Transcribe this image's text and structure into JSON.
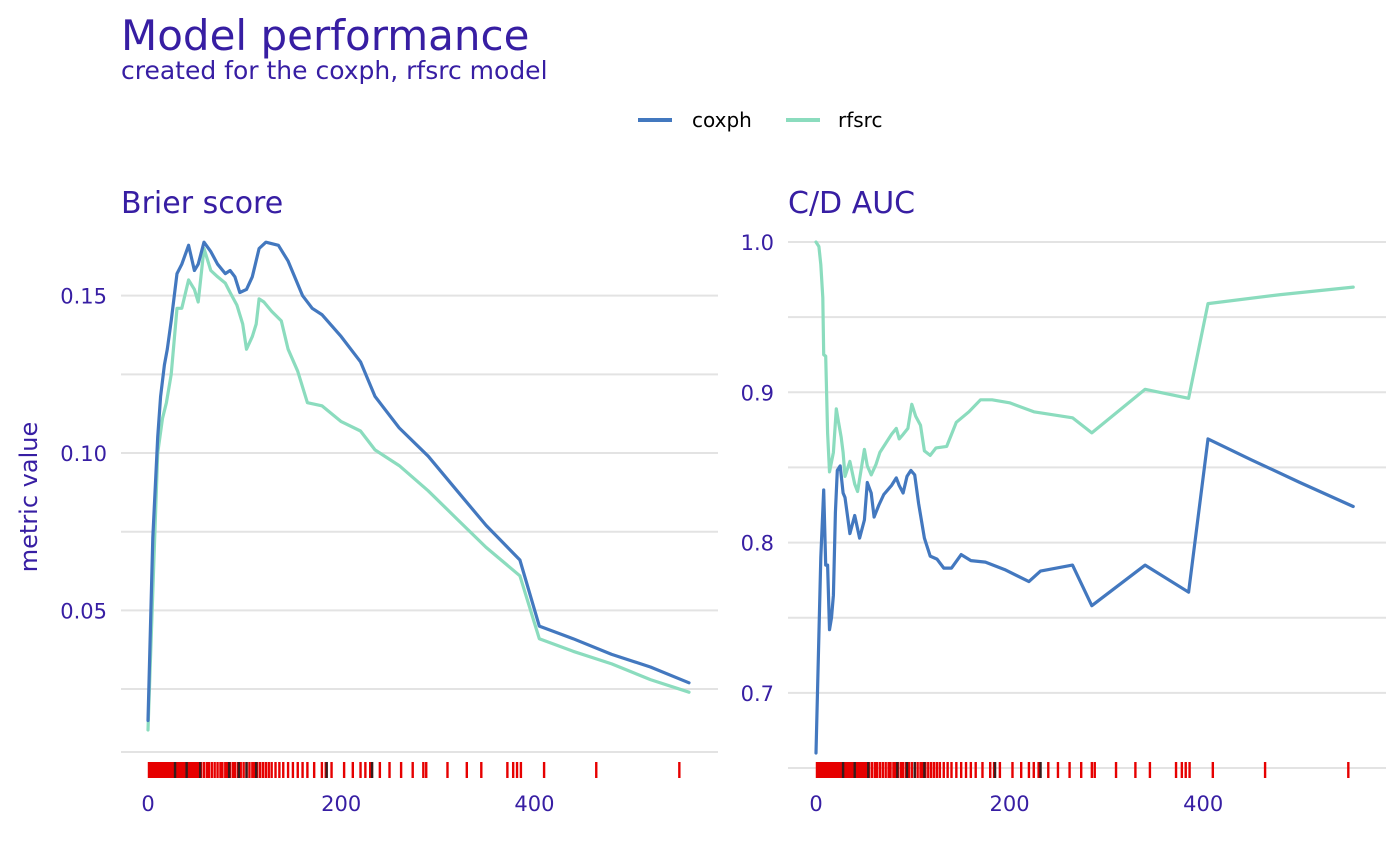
{
  "title": "Model performance",
  "subtitle": "created for the coxph, rfsrc model",
  "ylabel": "metric value",
  "colors": {
    "title": "#371ea3",
    "grid": "#e3e3e3",
    "rug": "#e60000",
    "rug_dark": "#371c1c",
    "coxph": "#4378bf",
    "rfsrc": "#8bdcbe"
  },
  "legend": {
    "position": "top",
    "items": [
      {
        "name": "coxph",
        "color": "#4378bf"
      },
      {
        "name": "rfsrc",
        "color": "#8bdcbe"
      }
    ]
  },
  "chart_data": [
    {
      "type": "line",
      "panel_title": "Brier score",
      "xlim": [
        0,
        560
      ],
      "ylim": [
        0.005,
        0.175
      ],
      "x_ticks": [
        0,
        200,
        400
      ],
      "x_tick_labels": [
        "0",
        "200",
        "400"
      ],
      "y_ticks": [
        0.05,
        0.1,
        0.15
      ],
      "y_tick_labels": [
        "0.05",
        "0.10",
        "0.15"
      ],
      "y_minor_ticks": [
        0.025,
        0.075,
        0.125
      ],
      "grid": true,
      "series": [
        {
          "name": "coxph",
          "color": "#4378bf",
          "points": [
            [
              0,
              0.015
            ],
            [
              5,
              0.073
            ],
            [
              10,
              0.105
            ],
            [
              13,
              0.118
            ],
            [
              17,
              0.128
            ],
            [
              20,
              0.133
            ],
            [
              24,
              0.142
            ],
            [
              30,
              0.157
            ],
            [
              35,
              0.16
            ],
            [
              42,
              0.166
            ],
            [
              48,
              0.158
            ],
            [
              52,
              0.16
            ],
            [
              58,
              0.167
            ],
            [
              65,
              0.164
            ],
            [
              72,
              0.16
            ],
            [
              80,
              0.157
            ],
            [
              85,
              0.158
            ],
            [
              90,
              0.156
            ],
            [
              95,
              0.151
            ],
            [
              102,
              0.152
            ],
            [
              108,
              0.156
            ],
            [
              115,
              0.165
            ],
            [
              122,
              0.167
            ],
            [
              135,
              0.166
            ],
            [
              145,
              0.161
            ],
            [
              160,
              0.15
            ],
            [
              170,
              0.146
            ],
            [
              180,
              0.144
            ],
            [
              200,
              0.137
            ],
            [
              220,
              0.129
            ],
            [
              235,
              0.118
            ],
            [
              260,
              0.108
            ],
            [
              290,
              0.099
            ],
            [
              320,
              0.088
            ],
            [
              350,
              0.077
            ],
            [
              385,
              0.066
            ],
            [
              405,
              0.045
            ],
            [
              440,
              0.041
            ],
            [
              480,
              0.036
            ],
            [
              520,
              0.032
            ],
            [
              560,
              0.027
            ]
          ]
        },
        {
          "name": "rfsrc",
          "color": "#8bdcbe",
          "points": [
            [
              0,
              0.012
            ],
            [
              6,
              0.065
            ],
            [
              10,
              0.1
            ],
            [
              15,
              0.111
            ],
            [
              19,
              0.116
            ],
            [
              24,
              0.125
            ],
            [
              30,
              0.146
            ],
            [
              35,
              0.146
            ],
            [
              42,
              0.155
            ],
            [
              48,
              0.152
            ],
            [
              52,
              0.148
            ],
            [
              58,
              0.165
            ],
            [
              65,
              0.158
            ],
            [
              72,
              0.156
            ],
            [
              80,
              0.154
            ],
            [
              85,
              0.151
            ],
            [
              92,
              0.147
            ],
            [
              98,
              0.141
            ],
            [
              102,
              0.133
            ],
            [
              108,
              0.137
            ],
            [
              112,
              0.141
            ],
            [
              115,
              0.149
            ],
            [
              120,
              0.148
            ],
            [
              128,
              0.145
            ],
            [
              138,
              0.142
            ],
            [
              145,
              0.133
            ],
            [
              155,
              0.126
            ],
            [
              165,
              0.116
            ],
            [
              180,
              0.115
            ],
            [
              200,
              0.11
            ],
            [
              220,
              0.107
            ],
            [
              235,
              0.101
            ],
            [
              260,
              0.096
            ],
            [
              290,
              0.088
            ],
            [
              320,
              0.079
            ],
            [
              350,
              0.07
            ],
            [
              385,
              0.061
            ],
            [
              405,
              0.041
            ],
            [
              440,
              0.037
            ],
            [
              480,
              0.033
            ],
            [
              520,
              0.028
            ],
            [
              560,
              0.024
            ]
          ]
        }
      ],
      "rug": [
        1,
        3,
        5,
        6,
        8,
        10,
        11,
        13,
        14,
        15,
        17,
        18,
        20,
        21,
        23,
        24,
        26,
        27,
        28,
        30,
        32,
        33,
        35,
        37,
        38,
        40,
        42,
        44,
        46,
        48,
        50,
        52,
        55,
        58,
        61,
        63,
        66,
        69,
        72,
        75,
        77,
        80,
        82,
        85,
        88,
        90,
        93,
        96,
        99,
        102,
        105,
        108,
        110,
        113,
        116,
        119,
        122,
        125,
        128,
        132,
        136,
        140,
        145,
        150,
        155,
        160,
        165,
        172,
        180,
        184,
        190,
        203,
        212,
        220,
        225,
        230,
        240,
        250,
        262,
        274,
        285,
        288,
        310,
        330,
        345,
        372,
        378,
        382,
        386,
        410,
        464,
        550
      ],
      "rug_dark": [
        28,
        40,
        54,
        84,
        94,
        102,
        112,
        185,
        232
      ]
    },
    {
      "type": "line",
      "panel_title": "C/D AUC",
      "xlim": [
        0,
        560
      ],
      "ylim": [
        0.65,
        1.0
      ],
      "x_ticks": [
        0,
        200,
        400
      ],
      "x_tick_labels": [
        "0",
        "200",
        "400"
      ],
      "y_ticks": [
        0.7,
        0.8,
        0.9,
        1.0
      ],
      "y_tick_labels": [
        "0.7",
        "0.8",
        "0.9",
        "1.0"
      ],
      "y_minor_ticks": [
        0.75,
        0.85,
        0.95
      ],
      "grid": true,
      "series": [
        {
          "name": "coxph",
          "color": "#4378bf",
          "points": [
            [
              0,
              0.66
            ],
            [
              5,
              0.79
            ],
            [
              8,
              0.835
            ],
            [
              10,
              0.785
            ],
            [
              12,
              0.785
            ],
            [
              14,
              0.742
            ],
            [
              16,
              0.75
            ],
            [
              18,
              0.765
            ],
            [
              20,
              0.82
            ],
            [
              22,
              0.848
            ],
            [
              25,
              0.851
            ],
            [
              28,
              0.833
            ],
            [
              30,
              0.83
            ],
            [
              35,
              0.806
            ],
            [
              40,
              0.818
            ],
            [
              45,
              0.803
            ],
            [
              50,
              0.815
            ],
            [
              53,
              0.84
            ],
            [
              57,
              0.833
            ],
            [
              60,
              0.817
            ],
            [
              65,
              0.825
            ],
            [
              70,
              0.832
            ],
            [
              78,
              0.838
            ],
            [
              83,
              0.843
            ],
            [
              86,
              0.838
            ],
            [
              90,
              0.833
            ],
            [
              94,
              0.844
            ],
            [
              98,
              0.848
            ],
            [
              102,
              0.845
            ],
            [
              106,
              0.826
            ],
            [
              112,
              0.803
            ],
            [
              118,
              0.791
            ],
            [
              125,
              0.789
            ],
            [
              132,
              0.783
            ],
            [
              140,
              0.783
            ],
            [
              150,
              0.792
            ],
            [
              160,
              0.788
            ],
            [
              175,
              0.787
            ],
            [
              195,
              0.782
            ],
            [
              220,
              0.774
            ],
            [
              232,
              0.781
            ],
            [
              265,
              0.785
            ],
            [
              285,
              0.758
            ],
            [
              340,
              0.785
            ],
            [
              385,
              0.767
            ],
            [
              405,
              0.869
            ],
            [
              450,
              0.855
            ],
            [
              500,
              0.84
            ],
            [
              555,
              0.824
            ]
          ]
        },
        {
          "name": "rfsrc",
          "color": "#8bdcbe",
          "points": [
            [
              0,
              1.0
            ],
            [
              3,
              0.997
            ],
            [
              5,
              0.985
            ],
            [
              7,
              0.963
            ],
            [
              8,
              0.925
            ],
            [
              10,
              0.924
            ],
            [
              12,
              0.873
            ],
            [
              14,
              0.847
            ],
            [
              18,
              0.86
            ],
            [
              21,
              0.889
            ],
            [
              23,
              0.881
            ],
            [
              26,
              0.87
            ],
            [
              28,
              0.86
            ],
            [
              30,
              0.844
            ],
            [
              35,
              0.854
            ],
            [
              40,
              0.839
            ],
            [
              43,
              0.834
            ],
            [
              47,
              0.85
            ],
            [
              50,
              0.862
            ],
            [
              53,
              0.851
            ],
            [
              57,
              0.845
            ],
            [
              62,
              0.852
            ],
            [
              66,
              0.86
            ],
            [
              72,
              0.866
            ],
            [
              78,
              0.872
            ],
            [
              83,
              0.876
            ],
            [
              86,
              0.869
            ],
            [
              90,
              0.872
            ],
            [
              95,
              0.876
            ],
            [
              99,
              0.892
            ],
            [
              103,
              0.884
            ],
            [
              108,
              0.878
            ],
            [
              112,
              0.861
            ],
            [
              118,
              0.858
            ],
            [
              124,
              0.863
            ],
            [
              135,
              0.864
            ],
            [
              145,
              0.88
            ],
            [
              158,
              0.887
            ],
            [
              170,
              0.895
            ],
            [
              182,
              0.895
            ],
            [
              200,
              0.893
            ],
            [
              225,
              0.887
            ],
            [
              265,
              0.883
            ],
            [
              285,
              0.873
            ],
            [
              340,
              0.902
            ],
            [
              385,
              0.896
            ],
            [
              405,
              0.959
            ],
            [
              480,
              0.965
            ],
            [
              555,
              0.97
            ]
          ]
        }
      ],
      "rug": [
        1,
        3,
        5,
        6,
        8,
        10,
        11,
        13,
        14,
        15,
        17,
        18,
        20,
        21,
        23,
        24,
        26,
        27,
        28,
        30,
        32,
        33,
        35,
        37,
        38,
        40,
        42,
        44,
        46,
        48,
        50,
        52,
        55,
        58,
        61,
        63,
        66,
        69,
        72,
        75,
        77,
        80,
        82,
        85,
        88,
        90,
        93,
        96,
        99,
        102,
        105,
        108,
        110,
        113,
        116,
        119,
        122,
        125,
        128,
        132,
        136,
        140,
        145,
        150,
        155,
        160,
        165,
        172,
        180,
        184,
        190,
        203,
        212,
        220,
        225,
        230,
        240,
        250,
        262,
        274,
        285,
        288,
        310,
        330,
        345,
        372,
        378,
        382,
        386,
        410,
        464,
        550
      ],
      "rug_dark": [
        28,
        40,
        54,
        84,
        94,
        102,
        112,
        185,
        232
      ]
    }
  ]
}
